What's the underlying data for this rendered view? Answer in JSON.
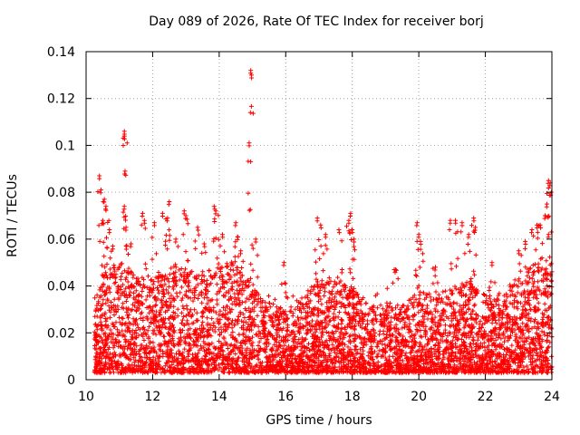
{
  "chart_data": {
    "type": "scatter",
    "title": "Day 089 of 2026, Rate Of TEC Index for receiver borj",
    "xlabel": "GPS time / hours",
    "ylabel": "ROTI / TECUs",
    "xlim": [
      10,
      24
    ],
    "ylim": [
      0,
      0.14
    ],
    "x_ticks": [
      "10",
      "12",
      "14",
      "16",
      "18",
      "20",
      "22",
      "24"
    ],
    "y_ticks": [
      "0",
      "0.02",
      "0.04",
      "0.06",
      "0.08",
      "0.1",
      "0.12",
      "0.14"
    ],
    "grid": true,
    "marker": "+",
    "color": "#ff0000",
    "dense_band": {
      "x_range": [
        10.25,
        24
      ],
      "y_range": [
        0.003,
        0.04
      ],
      "description": "continuous dense scatter of ROTI values"
    },
    "peaks": [
      {
        "x": 10.4,
        "y": 0.087
      },
      {
        "x": 10.45,
        "y": 0.081
      },
      {
        "x": 10.55,
        "y": 0.077
      },
      {
        "x": 10.6,
        "y": 0.074
      },
      {
        "x": 10.5,
        "y": 0.068
      },
      {
        "x": 10.7,
        "y": 0.064
      },
      {
        "x": 10.8,
        "y": 0.057
      },
      {
        "x": 11.15,
        "y": 0.106
      },
      {
        "x": 11.15,
        "y": 0.104
      },
      {
        "x": 11.17,
        "y": 0.089
      },
      {
        "x": 11.15,
        "y": 0.074
      },
      {
        "x": 11.2,
        "y": 0.065
      },
      {
        "x": 11.35,
        "y": 0.058
      },
      {
        "x": 11.7,
        "y": 0.071
      },
      {
        "x": 11.75,
        "y": 0.068
      },
      {
        "x": 12.05,
        "y": 0.067
      },
      {
        "x": 12.3,
        "y": 0.071
      },
      {
        "x": 12.5,
        "y": 0.076
      },
      {
        "x": 12.45,
        "y": 0.069
      },
      {
        "x": 12.7,
        "y": 0.06
      },
      {
        "x": 12.95,
        "y": 0.072
      },
      {
        "x": 13.0,
        "y": 0.07
      },
      {
        "x": 13.35,
        "y": 0.065
      },
      {
        "x": 13.55,
        "y": 0.058
      },
      {
        "x": 13.85,
        "y": 0.074
      },
      {
        "x": 13.9,
        "y": 0.072
      },
      {
        "x": 14.1,
        "y": 0.062
      },
      {
        "x": 14.5,
        "y": 0.067
      },
      {
        "x": 14.55,
        "y": 0.061
      },
      {
        "x": 14.65,
        "y": 0.055
      },
      {
        "x": 14.95,
        "y": 0.132
      },
      {
        "x": 14.97,
        "y": 0.13
      },
      {
        "x": 14.9,
        "y": 0.101
      },
      {
        "x": 15.1,
        "y": 0.06
      },
      {
        "x": 15.95,
        "y": 0.05
      },
      {
        "x": 16.95,
        "y": 0.069
      },
      {
        "x": 17.05,
        "y": 0.066
      },
      {
        "x": 17.2,
        "y": 0.062
      },
      {
        "x": 17.6,
        "y": 0.064
      },
      {
        "x": 17.95,
        "y": 0.071
      },
      {
        "x": 17.9,
        "y": 0.068
      },
      {
        "x": 18.0,
        "y": 0.064
      },
      {
        "x": 18.05,
        "y": 0.06
      },
      {
        "x": 19.3,
        "y": 0.047
      },
      {
        "x": 19.95,
        "y": 0.067
      },
      {
        "x": 20.0,
        "y": 0.062
      },
      {
        "x": 20.05,
        "y": 0.059
      },
      {
        "x": 20.5,
        "y": 0.048
      },
      {
        "x": 20.95,
        "y": 0.068
      },
      {
        "x": 21.1,
        "y": 0.068
      },
      {
        "x": 21.3,
        "y": 0.067
      },
      {
        "x": 21.5,
        "y": 0.062
      },
      {
        "x": 21.65,
        "y": 0.069
      },
      {
        "x": 21.7,
        "y": 0.065
      },
      {
        "x": 22.2,
        "y": 0.05
      },
      {
        "x": 23.0,
        "y": 0.055
      },
      {
        "x": 23.2,
        "y": 0.059
      },
      {
        "x": 23.4,
        "y": 0.064
      },
      {
        "x": 23.55,
        "y": 0.066
      },
      {
        "x": 23.65,
        "y": 0.066
      },
      {
        "x": 23.85,
        "y": 0.075
      },
      {
        "x": 23.9,
        "y": 0.085
      },
      {
        "x": 23.95,
        "y": 0.084
      },
      {
        "x": 23.98,
        "y": 0.08
      },
      {
        "x": 23.8,
        "y": 0.07
      },
      {
        "x": 23.9,
        "y": 0.062
      }
    ]
  }
}
